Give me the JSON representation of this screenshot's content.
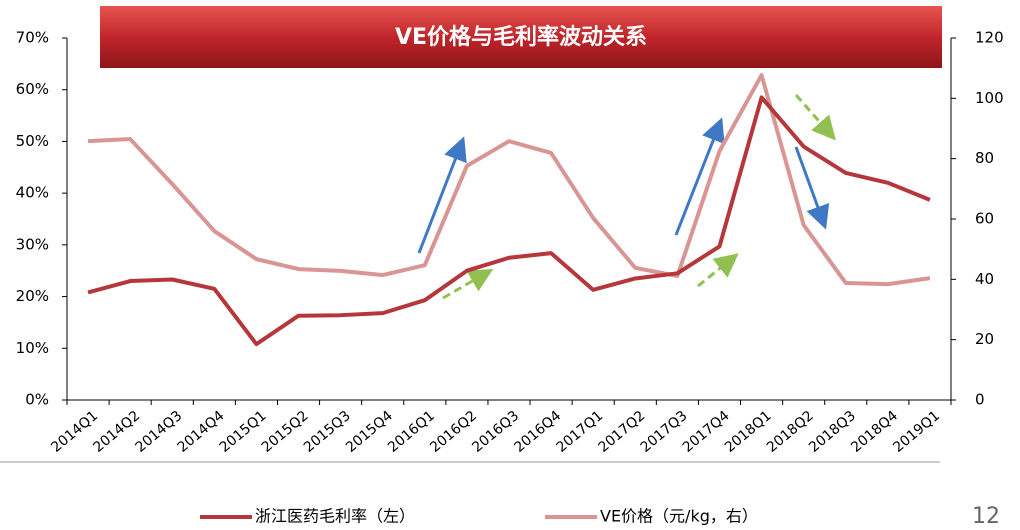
{
  "chart_data": {
    "type": "line",
    "title": "VE价格与毛利率波动关系",
    "page_number": "12",
    "categories": [
      "2014Q1",
      "2014Q2",
      "2014Q3",
      "2014Q4",
      "2015Q1",
      "2015Q2",
      "2015Q3",
      "2015Q4",
      "2016Q1",
      "2016Q2",
      "2016Q3",
      "2016Q4",
      "2017Q1",
      "2017Q2",
      "2017Q3",
      "2017Q4",
      "2018Q1",
      "2018Q2",
      "2018Q3",
      "2018Q4",
      "2019Q1"
    ],
    "series": [
      {
        "name": "浙江医药毛利率（左）",
        "color": "#b5373b",
        "axis": "y",
        "values": [
          20.8,
          23,
          23.3,
          21.5,
          10.8,
          16.3,
          16.4,
          16.8,
          19.3,
          25,
          27.5,
          28.4,
          21.3,
          23.5,
          24.5,
          29.7,
          58.5,
          49,
          43.9,
          42,
          38.7
        ]
      },
      {
        "name": "VE价格（元/kg，右）",
        "color": "#d99594",
        "axis": "y2",
        "values": [
          85.8,
          86.5,
          71.6,
          56,
          46.7,
          43.4,
          42.8,
          41.4,
          44.7,
          77.6,
          85.8,
          81.9,
          60.3,
          43.8,
          41.1,
          82.5,
          107.7,
          58,
          38.8,
          38.4,
          40.4
        ]
      }
    ],
    "ylim": [
      0,
      70
    ],
    "yticks": [
      {
        "value": 0,
        "label": "0%"
      },
      {
        "value": 10,
        "label": "10%"
      },
      {
        "value": 20,
        "label": "20%"
      },
      {
        "value": 30,
        "label": "30%"
      },
      {
        "value": 40,
        "label": "40%"
      },
      {
        "value": 50,
        "label": "50%"
      },
      {
        "value": 60,
        "label": "60%"
      },
      {
        "value": 70,
        "label": "70%"
      }
    ],
    "y2lim": [
      0,
      120
    ],
    "y2ticks": [
      0,
      20,
      40,
      60,
      80,
      100,
      120
    ],
    "grid": false,
    "legend": "bottom"
  }
}
